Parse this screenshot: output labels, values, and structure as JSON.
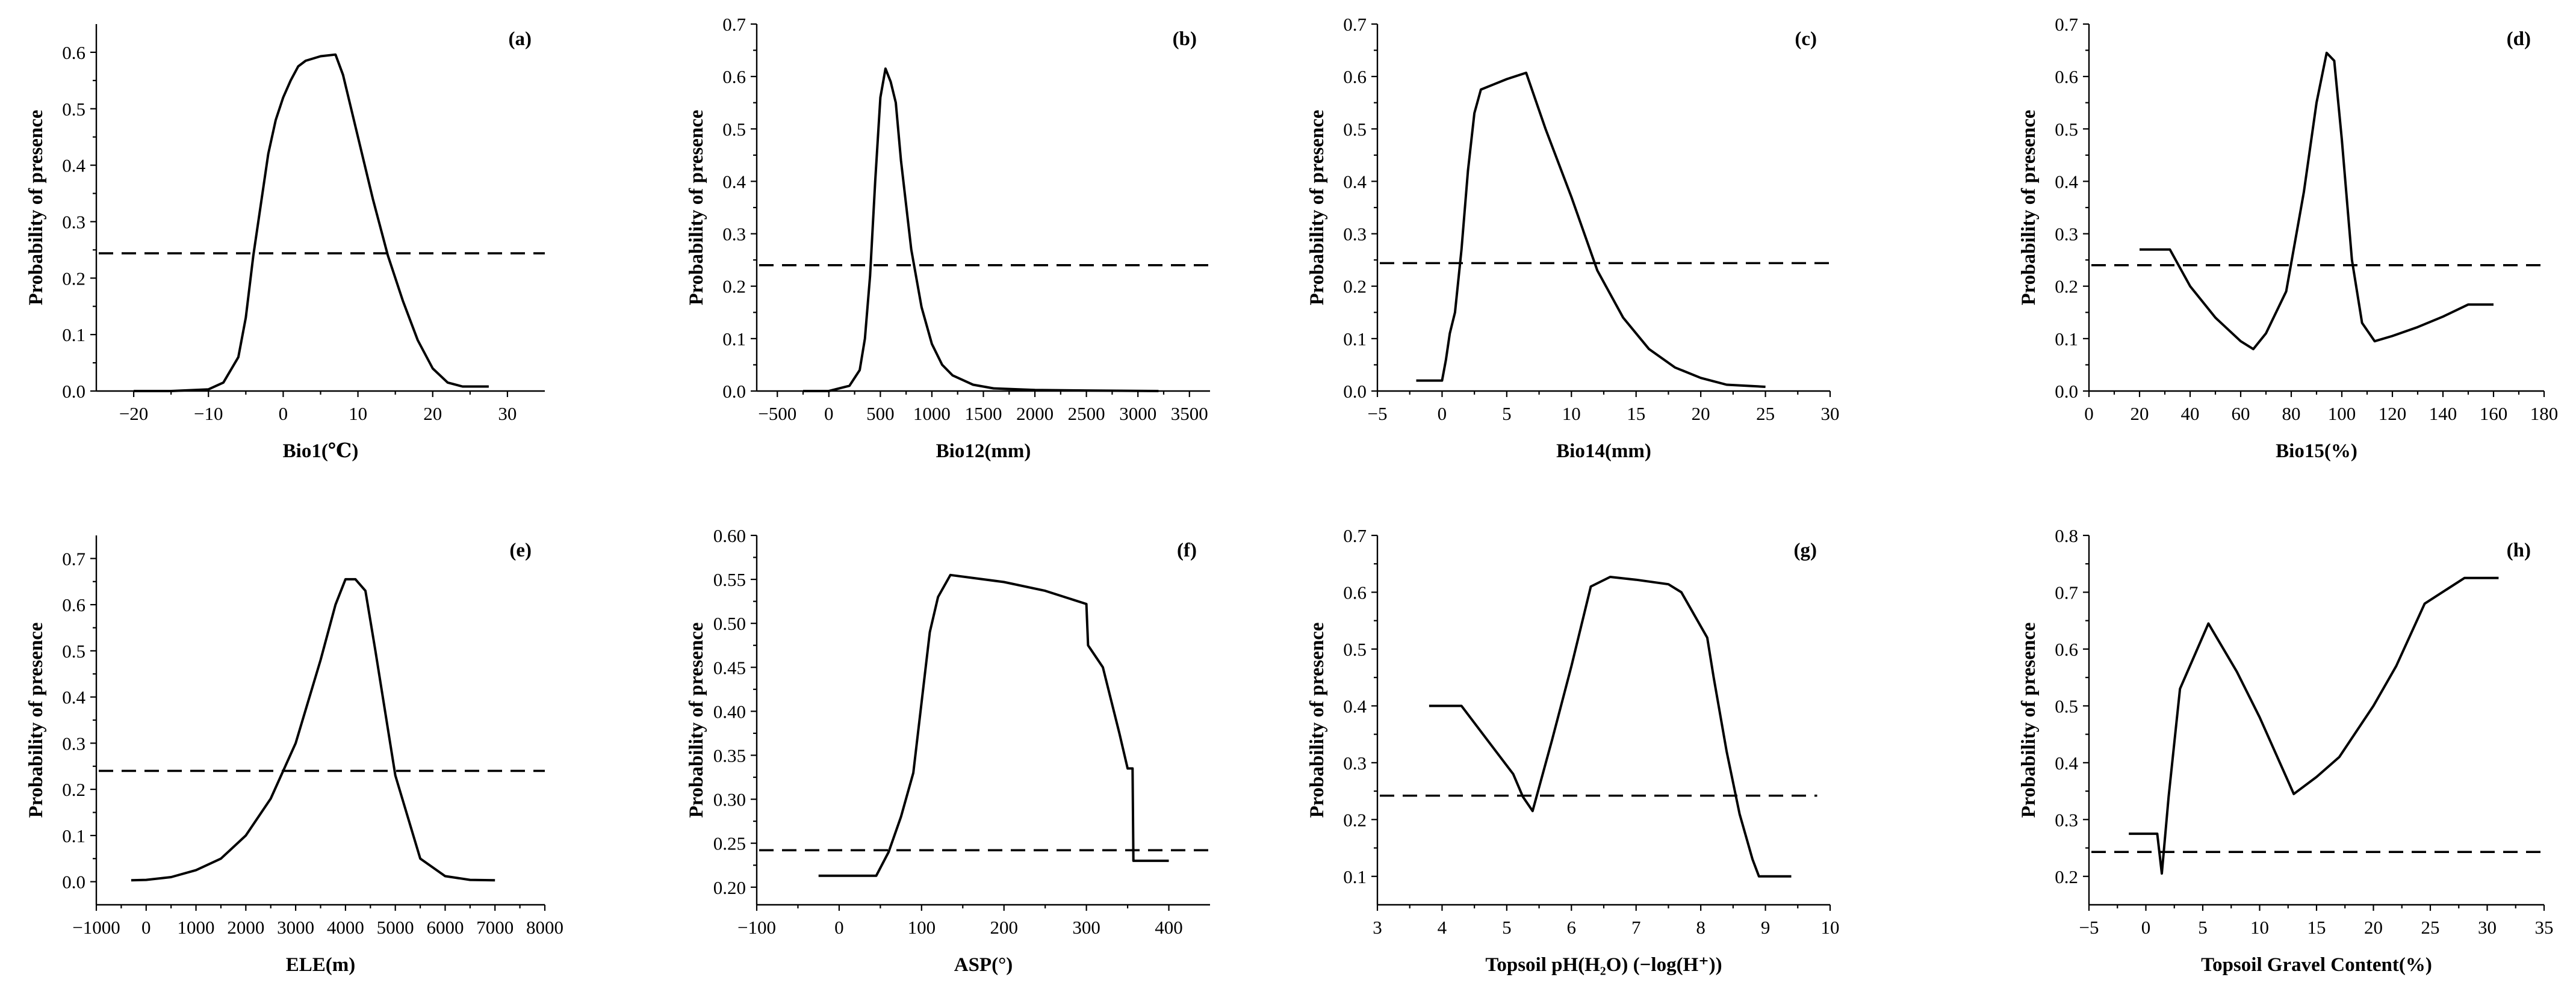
{
  "chart_data": [
    {
      "panel": "(a)",
      "type": "line",
      "xlabel": "Bio1(℃)",
      "ylabel": "Probability of presence",
      "xlim": [
        -25,
        35
      ],
      "ylim": [
        0,
        0.65
      ],
      "xticks": [
        -20,
        -10,
        0,
        10,
        20,
        30
      ],
      "yticks": [
        0.0,
        0.1,
        0.2,
        0.3,
        0.4,
        0.5,
        0.6
      ],
      "xtick_labels": [
        "−20",
        "−10",
        "0",
        "10",
        "20",
        "30"
      ],
      "ytick_labels": [
        "0.0",
        "0.1",
        "0.2",
        "0.3",
        "0.4",
        "0.5",
        "0.6"
      ],
      "threshold": 0.244,
      "threshold_x": [
        -25,
        35
      ],
      "x": [
        -20,
        -15,
        -10,
        -8,
        -6,
        -5,
        -4,
        -3,
        -2,
        -1,
        0,
        1,
        2,
        3,
        5,
        7,
        8,
        10,
        12,
        14,
        16,
        18,
        20,
        22,
        24,
        27.5
      ],
      "y": [
        0.0,
        0.0,
        0.003,
        0.015,
        0.06,
        0.13,
        0.24,
        0.33,
        0.42,
        0.48,
        0.52,
        0.55,
        0.575,
        0.585,
        0.593,
        0.596,
        0.56,
        0.45,
        0.34,
        0.24,
        0.16,
        0.09,
        0.04,
        0.015,
        0.008,
        0.008
      ]
    },
    {
      "panel": "(b)",
      "type": "line",
      "xlabel": "Bio12(mm)",
      "ylabel": "Probability of presence",
      "xlim": [
        -700,
        3700
      ],
      "ylim": [
        0,
        0.7
      ],
      "xticks": [
        -500,
        0,
        500,
        1000,
        1500,
        2000,
        2500,
        3000,
        3500
      ],
      "yticks": [
        0.0,
        0.1,
        0.2,
        0.3,
        0.4,
        0.5,
        0.6,
        0.7
      ],
      "xtick_labels": [
        "−500",
        "0",
        "500",
        "1000",
        "1500",
        "2000",
        "2500",
        "3000",
        "3500"
      ],
      "ytick_labels": [
        "0.0",
        "0.1",
        "0.2",
        "0.3",
        "0.4",
        "0.5",
        "0.6",
        "0.7"
      ],
      "threshold": 0.24,
      "threshold_x": [
        -700,
        3700
      ],
      "x": [
        -250,
        0,
        200,
        300,
        350,
        400,
        450,
        500,
        550,
        600,
        650,
        700,
        800,
        900,
        1000,
        1100,
        1200,
        1400,
        1600,
        2000,
        2500,
        3200
      ],
      "y": [
        0.0,
        0.0,
        0.01,
        0.04,
        0.1,
        0.22,
        0.4,
        0.56,
        0.615,
        0.59,
        0.55,
        0.44,
        0.27,
        0.16,
        0.09,
        0.05,
        0.03,
        0.012,
        0.005,
        0.002,
        0.001,
        0.0
      ]
    },
    {
      "panel": "(c)",
      "type": "line",
      "xlabel": "Bio14(mm)",
      "ylabel": "Probability of presence",
      "xlim": [
        -5,
        30
      ],
      "ylim": [
        0,
        0.7
      ],
      "xticks": [
        -5,
        0,
        5,
        10,
        15,
        20,
        25,
        30
      ],
      "yticks": [
        0.0,
        0.1,
        0.2,
        0.3,
        0.4,
        0.5,
        0.6,
        0.7
      ],
      "xtick_labels": [
        "−5",
        "0",
        "5",
        "10",
        "15",
        "20",
        "25",
        "30"
      ],
      "ytick_labels": [
        "0.0",
        "0.1",
        "0.2",
        "0.3",
        "0.4",
        "0.5",
        "0.6",
        "0.7"
      ],
      "threshold": 0.244,
      "threshold_x": [
        -5,
        30
      ],
      "x": [
        -2,
        0,
        0.3,
        0.6,
        1.0,
        1.5,
        2.0,
        2.5,
        3.0,
        4,
        5,
        6.5,
        8,
        10,
        12,
        14,
        16,
        18,
        20,
        22,
        25
      ],
      "y": [
        0.02,
        0.02,
        0.06,
        0.11,
        0.15,
        0.27,
        0.42,
        0.53,
        0.575,
        0.585,
        0.595,
        0.607,
        0.5,
        0.37,
        0.23,
        0.14,
        0.08,
        0.045,
        0.025,
        0.012,
        0.008
      ]
    },
    {
      "panel": "(d)",
      "type": "line",
      "xlabel": "Bio15(%)",
      "ylabel": "Probability of presence",
      "xlim": [
        0,
        180
      ],
      "ylim": [
        0,
        0.7
      ],
      "xticks": [
        0,
        20,
        40,
        60,
        80,
        100,
        120,
        140,
        160,
        180
      ],
      "yticks": [
        0.0,
        0.1,
        0.2,
        0.3,
        0.4,
        0.5,
        0.6,
        0.7
      ],
      "xtick_labels": [
        "0",
        "20",
        "40",
        "60",
        "80",
        "100",
        "120",
        "140",
        "160",
        "180"
      ],
      "ytick_labels": [
        "0.0",
        "0.1",
        "0.2",
        "0.3",
        "0.4",
        "0.5",
        "0.6",
        "0.7"
      ],
      "threshold": 0.24,
      "threshold_x": [
        0,
        180
      ],
      "x": [
        20,
        32,
        40,
        50,
        60,
        65,
        70,
        78,
        85,
        90,
        94,
        97,
        100,
        104,
        108,
        113,
        120,
        130,
        140,
        150,
        160
      ],
      "y": [
        0.27,
        0.27,
        0.2,
        0.14,
        0.095,
        0.08,
        0.11,
        0.19,
        0.38,
        0.55,
        0.645,
        0.63,
        0.48,
        0.25,
        0.13,
        0.095,
        0.105,
        0.122,
        0.142,
        0.165,
        0.165
      ]
    },
    {
      "panel": "(e)",
      "type": "line",
      "xlabel": "ELE(m)",
      "ylabel": "Probability of presence",
      "xlim": [
        -1000,
        8000
      ],
      "ylim": [
        -0.05,
        0.75
      ],
      "xticks": [
        -1000,
        0,
        1000,
        2000,
        3000,
        4000,
        5000,
        6000,
        7000,
        8000
      ],
      "yticks": [
        0.0,
        0.1,
        0.2,
        0.3,
        0.4,
        0.5,
        0.6,
        0.7
      ],
      "xtick_labels": [
        "−1000",
        "0",
        "1000",
        "2000",
        "3000",
        "4000",
        "5000",
        "6000",
        "7000",
        "8000"
      ],
      "ytick_labels": [
        "0.0",
        "0.1",
        "0.2",
        "0.3",
        "0.4",
        "0.5",
        "0.6",
        "0.7"
      ],
      "threshold": 0.24,
      "threshold_x": [
        -1000,
        8000
      ],
      "x": [
        -300,
        0,
        500,
        1000,
        1500,
        2000,
        2500,
        3000,
        3500,
        3800,
        4000,
        4200,
        4400,
        4600,
        5000,
        5500,
        6000,
        6500,
        7000
      ],
      "y": [
        0.003,
        0.004,
        0.01,
        0.025,
        0.05,
        0.1,
        0.18,
        0.3,
        0.48,
        0.6,
        0.655,
        0.655,
        0.63,
        0.5,
        0.23,
        0.05,
        0.012,
        0.004,
        0.003
      ]
    },
    {
      "panel": "(f)",
      "type": "line",
      "xlabel": "ASP(°)",
      "ylabel": "Probability of presence",
      "xlim": [
        -100,
        450
      ],
      "ylim": [
        0.18,
        0.6
      ],
      "xticks": [
        -100,
        0,
        100,
        200,
        300,
        400
      ],
      "yticks": [
        0.2,
        0.25,
        0.3,
        0.35,
        0.4,
        0.45,
        0.5,
        0.55,
        0.6
      ],
      "xtick_labels": [
        "−100",
        "0",
        "100",
        "200",
        "300",
        "400"
      ],
      "ytick_labels": [
        "0.20",
        "0.25",
        "0.30",
        "0.35",
        "0.40",
        "0.45",
        "0.50",
        "0.55",
        "0.60"
      ],
      "threshold": 0.242,
      "threshold_x": [
        -100,
        450
      ],
      "x": [
        -25,
        45,
        60,
        75,
        90,
        100,
        110,
        120,
        135,
        200,
        250,
        300,
        302,
        320,
        340,
        350,
        356,
        357,
        400
      ],
      "y": [
        0.213,
        0.213,
        0.24,
        0.28,
        0.33,
        0.41,
        0.49,
        0.53,
        0.555,
        0.547,
        0.537,
        0.522,
        0.475,
        0.45,
        0.375,
        0.335,
        0.335,
        0.23,
        0.23
      ]
    },
    {
      "panel": "(g)",
      "type": "line",
      "xlabel": "Topsoil pH(H₂O) (−log(H⁺))",
      "ylabel": "Probability of presence",
      "xlim": [
        3,
        10
      ],
      "ylim": [
        0.05,
        0.7
      ],
      "xticks": [
        3,
        4,
        5,
        6,
        7,
        8,
        9,
        10
      ],
      "yticks": [
        0.1,
        0.2,
        0.3,
        0.4,
        0.5,
        0.6,
        0.7
      ],
      "xtick_labels": [
        "3",
        "4",
        "5",
        "6",
        "7",
        "8",
        "9",
        "10"
      ],
      "ytick_labels": [
        "0.1",
        "0.2",
        "0.3",
        "0.4",
        "0.5",
        "0.6",
        "0.7"
      ],
      "threshold": 0.242,
      "threshold_x": [
        3,
        9.8
      ],
      "x": [
        3.8,
        4.3,
        4.7,
        5.1,
        5.25,
        5.4,
        5.7,
        6.0,
        6.3,
        6.6,
        7.0,
        7.5,
        7.7,
        7.9,
        8.1,
        8.2,
        8.4,
        8.6,
        8.8,
        8.9,
        9.4
      ],
      "y": [
        0.4,
        0.4,
        0.34,
        0.28,
        0.24,
        0.215,
        0.34,
        0.47,
        0.61,
        0.627,
        0.622,
        0.614,
        0.6,
        0.56,
        0.52,
        0.45,
        0.32,
        0.21,
        0.13,
        0.1,
        0.1
      ]
    },
    {
      "panel": "(h)",
      "type": "line",
      "xlabel": "Topsoil Gravel Content(%)",
      "ylabel": "Probability of presence",
      "xlim": [
        -5,
        35
      ],
      "ylim": [
        0.15,
        0.8
      ],
      "xticks": [
        -5,
        0,
        5,
        10,
        15,
        20,
        25,
        30,
        35
      ],
      "yticks": [
        0.2,
        0.3,
        0.4,
        0.5,
        0.6,
        0.7,
        0.8
      ],
      "xtick_labels": [
        "−5",
        "0",
        "5",
        "10",
        "15",
        "20",
        "25",
        "30",
        "35"
      ],
      "ytick_labels": [
        "0.2",
        "0.3",
        "0.4",
        "0.5",
        "0.6",
        "0.7",
        "0.8"
      ],
      "threshold": 0.243,
      "threshold_x": [
        -5,
        35
      ],
      "x": [
        -1.5,
        1.0,
        1.4,
        2.0,
        3.0,
        5.5,
        8,
        10,
        13,
        15,
        17,
        20,
        22,
        24.5,
        28,
        31
      ],
      "y": [
        0.275,
        0.275,
        0.205,
        0.34,
        0.53,
        0.645,
        0.56,
        0.48,
        0.345,
        0.375,
        0.41,
        0.5,
        0.57,
        0.68,
        0.725,
        0.725
      ]
    }
  ]
}
